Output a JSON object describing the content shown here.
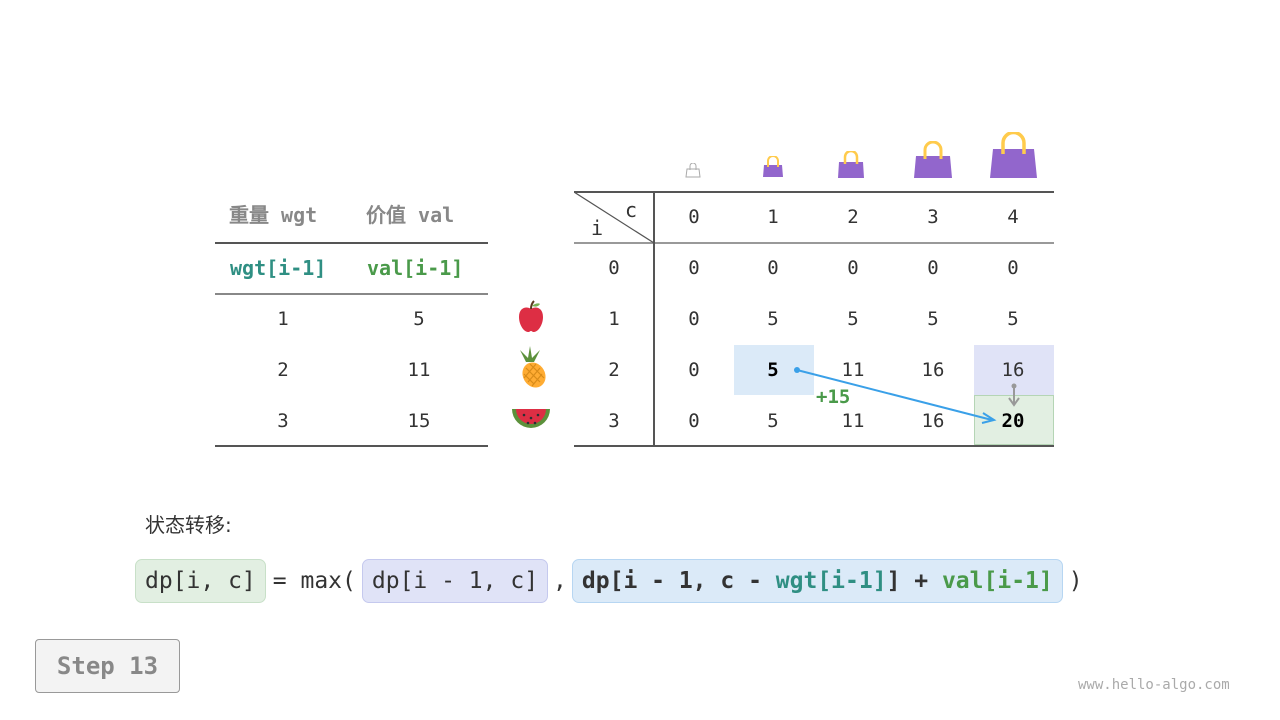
{
  "left_table": {
    "header": [
      "重量 wgt",
      "价值 val"
    ],
    "subheader": [
      "wgt[i-1]",
      "val[i-1]"
    ],
    "rows": [
      [
        "1",
        "5"
      ],
      [
        "2",
        "11"
      ],
      [
        "3",
        "15"
      ]
    ]
  },
  "items": [
    {
      "icon": "apple-icon"
    },
    {
      "icon": "pineapple-icon"
    },
    {
      "icon": "watermelon-icon"
    }
  ],
  "dp_table": {
    "corner_c": "c",
    "corner_i": "i",
    "capacities": [
      "0",
      "1",
      "2",
      "3",
      "4"
    ],
    "row_index": [
      "0",
      "1",
      "2",
      "3"
    ],
    "rows": [
      [
        "0",
        "0",
        "0",
        "0",
        "0"
      ],
      [
        "0",
        "5",
        "5",
        "5",
        "5"
      ],
      [
        "0",
        "5",
        "11",
        "16",
        "16"
      ],
      [
        "0",
        "5",
        "11",
        "16",
        "20"
      ]
    ],
    "annotation": "+15",
    "colors": {
      "source": "#dbeaf8",
      "skip": "#e0e3f7",
      "target": "#e2efe2",
      "arrow": "#3aa0e8"
    }
  },
  "formula_label": "状态转移:",
  "formula": {
    "lhs": "dp[i, c]",
    "eq": "= max(",
    "opt1": "dp[i - 1, c]",
    "comma": ",",
    "opt2_a": "dp[i - 1, c - ",
    "opt2_wgt": "wgt[i-1]",
    "opt2_b": "] + ",
    "opt2_val": "val[i-1]",
    "close": ")"
  },
  "step_label": "Step 13",
  "watermark": "www.hello-algo.com"
}
